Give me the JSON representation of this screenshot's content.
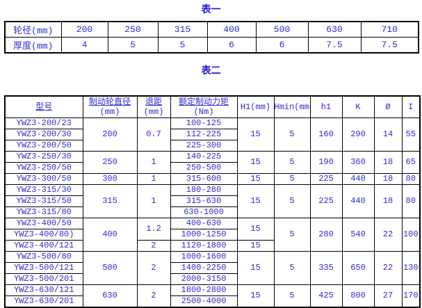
{
  "page": {
    "background": "#ffffff",
    "text_color": "#2b2bd5",
    "border_color": "#000000"
  },
  "table1": {
    "title": "表一",
    "rows": [
      {
        "label": "轮径(mm)",
        "values": [
          "200",
          "250",
          "315",
          "400",
          "500",
          "630",
          "710"
        ]
      },
      {
        "label": "厚度(mm)",
        "values": [
          "4",
          "5",
          "5",
          "6",
          "6",
          "7.5",
          "7.5"
        ]
      }
    ]
  },
  "table2": {
    "title": "表二",
    "headers": [
      {
        "text": "型号",
        "sub": "",
        "underline": true
      },
      {
        "text": "制动轮直径",
        "sub": "(mm)",
        "underline": true
      },
      {
        "text": "退距",
        "sub": "(mm)",
        "underline": true
      },
      {
        "text": "额定制动力矩",
        "sub": "(Nm)",
        "underline": true
      },
      {
        "text": "H1(mm)",
        "sub": "",
        "underline": false
      },
      {
        "text": "Hmin(mm)",
        "sub": "",
        "underline": false
      },
      {
        "text": "h1",
        "sub": "",
        "underline": false
      },
      {
        "text": "K",
        "sub": "",
        "underline": false
      },
      {
        "text": "Ø",
        "sub": "",
        "underline": false
      },
      {
        "text": "I",
        "sub": "",
        "underline": false
      }
    ],
    "rows": [
      [
        {
          "t": "YWZ3-200/23"
        },
        {
          "t": "200",
          "rs": 3
        },
        {
          "t": "0.7",
          "rs": 3
        },
        {
          "t": "100-125"
        },
        {
          "t": "15",
          "rs": 3
        },
        {
          "t": "5",
          "rs": 3
        },
        {
          "t": "160",
          "rs": 3
        },
        {
          "t": "290",
          "rs": 3
        },
        {
          "t": "14",
          "rs": 3
        },
        {
          "t": "55",
          "rs": 3
        }
      ],
      [
        {
          "t": "YWZ3-200/30"
        },
        {
          "t": "112-225"
        }
      ],
      [
        {
          "t": "YWZ3-200/50"
        },
        {
          "t": "225-300"
        }
      ],
      [
        {
          "t": "YWZ3-250/30"
        },
        {
          "t": "250",
          "rs": 2
        },
        {
          "t": "1",
          "rs": 2
        },
        {
          "t": "140-225"
        },
        {
          "t": "15",
          "rs": 2
        },
        {
          "t": "5",
          "rs": 2
        },
        {
          "t": "190",
          "rs": 2
        },
        {
          "t": "360",
          "rs": 2
        },
        {
          "t": "18",
          "rs": 2
        },
        {
          "t": "65",
          "rs": 2
        }
      ],
      [
        {
          "t": "YWZ3-250/50"
        },
        {
          "t": "250-500"
        }
      ],
      [
        {
          "t": "YWZ3-300/50"
        },
        {
          "t": "300"
        },
        {
          "t": "1"
        },
        {
          "t": "315-600"
        },
        {
          "t": "15"
        },
        {
          "t": "5"
        },
        {
          "t": "225"
        },
        {
          "t": "440"
        },
        {
          "t": "18"
        },
        {
          "t": "80"
        }
      ],
      [
        {
          "t": "YWZ3-315/30"
        },
        {
          "t": "315",
          "rs": 3
        },
        {
          "t": "1",
          "rs": 3
        },
        {
          "t": "180-280"
        },
        {
          "t": "15",
          "rs": 3
        },
        {
          "t": "5",
          "rs": 3
        },
        {
          "t": "225",
          "rs": 3
        },
        {
          "t": "440",
          "rs": 3
        },
        {
          "t": "18",
          "rs": 3
        },
        {
          "t": "80",
          "rs": 3
        }
      ],
      [
        {
          "t": "YWZ3-315/50"
        },
        {
          "t": "315-630"
        }
      ],
      [
        {
          "t": "YWZ3-315/80"
        },
        {
          "t": "630-1000"
        }
      ],
      [
        {
          "t": "YWZ3-400/50"
        },
        {
          "t": "400",
          "rs": 3
        },
        {
          "t": "1.2",
          "rs": 2
        },
        {
          "t": "400-630"
        },
        {
          "t": "15",
          "rs": 2
        },
        {
          "t": "5",
          "rs": 3
        },
        {
          "t": "280",
          "rs": 3
        },
        {
          "t": "540",
          "rs": 3
        },
        {
          "t": "22",
          "rs": 3
        },
        {
          "t": "100",
          "rs": 3
        }
      ],
      [
        {
          "t": "YWZ3-400/80)"
        },
        {
          "t": "1000-1250"
        }
      ],
      [
        {
          "t": "YWZ3-400/121"
        },
        {
          "t": "2"
        },
        {
          "t": "1120-1800"
        },
        {
          "t": "15"
        }
      ],
      [
        {
          "t": "YWZ3-500/80"
        },
        {
          "t": "500",
          "rs": 3
        },
        {
          "t": "2",
          "rs": 3
        },
        {
          "t": "1000-1600"
        },
        {
          "t": "15",
          "rs": 3
        },
        {
          "t": "5",
          "rs": 3
        },
        {
          "t": "335",
          "rs": 3
        },
        {
          "t": "650",
          "rs": 3
        },
        {
          "t": "22",
          "rs": 3
        },
        {
          "t": "130",
          "rs": 3
        }
      ],
      [
        {
          "t": "YWZ3-500/121"
        },
        {
          "t": "1400-2250"
        }
      ],
      [
        {
          "t": "YWZ3-500/201"
        },
        {
          "t": "2000-3150"
        }
      ],
      [
        {
          "t": "YWZ3-630/121"
        },
        {
          "t": "630",
          "rs": 2
        },
        {
          "t": "2",
          "rs": 2
        },
        {
          "t": "1800-2800"
        },
        {
          "t": "15",
          "rs": 2
        },
        {
          "t": "5",
          "rs": 2
        },
        {
          "t": "425",
          "rs": 2
        },
        {
          "t": "800",
          "rs": 2
        },
        {
          "t": "27",
          "rs": 2
        },
        {
          "t": "170",
          "rs": 2
        }
      ],
      [
        {
          "t": "YWZ3-630/201"
        },
        {
          "t": "2500-4000"
        }
      ]
    ]
  }
}
